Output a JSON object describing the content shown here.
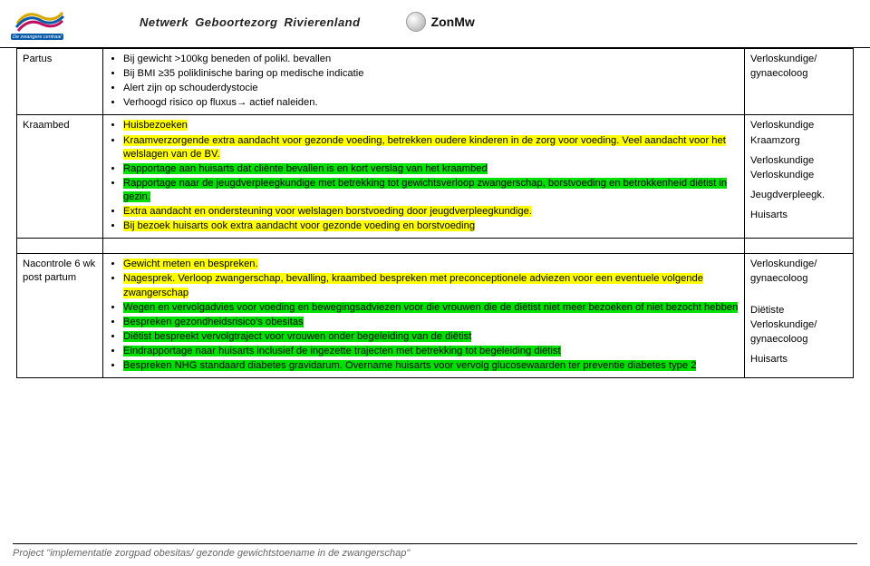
{
  "header": {
    "badge": "De zwangere centraal",
    "title": "Netwerk  Geboortezorg  Rivierenland",
    "logo_right_text": "ZonMw"
  },
  "colors": {
    "highlight_yellow": "#ffff00",
    "highlight_green": "#00e000",
    "border": "#000000",
    "footer_text": "#666666"
  },
  "table": {
    "rows": [
      {
        "stage": "Partus",
        "items": [
          {
            "text": "Bij gewicht >100kg beneden of polikl. bevallen",
            "hl": null
          },
          {
            "text": "Bij BMI ≥35 poliklinische baring  op medische indicatie",
            "hl": null
          },
          {
            "text": "Alert zijn op schouderdystocie",
            "hl": null
          },
          {
            "text": "Verhoogd risico op fluxus→ actief naleiden.",
            "hl": null
          }
        ],
        "roles": [
          "Verloskundige/",
          "gynaecoloog"
        ]
      },
      {
        "stage": "Kraambed",
        "items": [
          {
            "text": "Huisbezoeken",
            "hl": "y"
          },
          {
            "text": "Kraamverzorgende extra aandacht voor gezonde voeding, betrekken oudere kinderen in de zorg voor voeding. Veel aandacht voor het welslagen van de BV.",
            "hl": "y"
          },
          {
            "text": "Rapportage  aan huisarts dat cliënte bevallen is en kort verslag van het kraambed",
            "hl": "g"
          },
          {
            "text": "Rapportage naar de jeugdverpleegkundige met betrekking tot gewichtsverloop zwangerschap, borstvoeding en betrokkenheid diëtist in gezin.",
            "hl": "g"
          },
          {
            "text": "Extra aandacht en ondersteuning voor welslagen borstvoeding door jeugdverpleegkundige.",
            "hl": "y"
          },
          {
            "text": "Bij bezoek huisarts ook extra aandacht voor gezonde voeding en  borstvoeding",
            "hl": "y"
          }
        ],
        "roles": [
          "Verloskundige",
          "Kraamzorg",
          "",
          "Verloskundige",
          "Verloskundige",
          "",
          "Jeugdverpleegk.",
          "",
          "Huisarts"
        ]
      },
      {
        "stage": "Nacontrole 6 wk post partum",
        "items": [
          {
            "text": "Gewicht meten en bespreken.",
            "hl": "y"
          },
          {
            "text": "Nagesprek. Verloop  zwangerschap, bevalling, kraambed bespreken met preconceptionele adviezen voor een eventuele volgende zwangerschap",
            "hl": "y"
          },
          {
            "text": "Wegen  en vervolgadvies  voor voeding en bewegingsadviezen voor die vrouwen die de diëtist niet meer bezoeken of  niet bezocht hebben",
            "hl": "g"
          },
          {
            "text": "Bespreken gezondheidsrisico's obesitas",
            "hl": "g"
          },
          {
            "text": "Diëtist bespreekt vervolgtraject voor vrouwen onder begeleiding van de diëtist",
            "hl": "g"
          },
          {
            "text": "Eindrapportage  naar huisarts inclusief de ingezette trajecten met betrekking tot begeleiding diëtist",
            "hl": "g"
          },
          {
            "text": "Bespreken NHG standaard diabetes gravidarum. Overname huisarts voor vervolg glucosewaarden ter preventie diabetes type 2",
            "hl": "g"
          }
        ],
        "roles": [
          "Verloskundige/",
          "gynaecoloog",
          "",
          "",
          "",
          "Diëtiste",
          "Verloskundige/",
          "gynaecoloog",
          "",
          "Huisarts"
        ]
      }
    ]
  },
  "footer": {
    "text": "Project \"implementatie zorgpad obesitas/ gezonde gewichtstoename in de zwangerschap\""
  }
}
